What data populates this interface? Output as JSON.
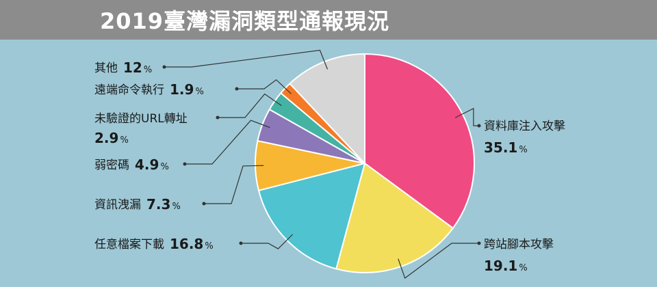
{
  "header": {
    "title": "2019臺灣漏洞類型通報現況"
  },
  "chart_data": {
    "type": "pie",
    "title": "2019臺灣漏洞類型通報現況",
    "unit": "%",
    "slices": [
      {
        "label": "資料庫注入攻擊",
        "value": 35.1,
        "color": "#f04a83"
      },
      {
        "label": "跨站腳本攻擊",
        "value": 19.1,
        "color": "#f2de5a"
      },
      {
        "label": "任意檔案下載",
        "value": 16.8,
        "color": "#4fc3cf"
      },
      {
        "label": "資訊洩漏",
        "value": 7.3,
        "color": "#f7b733"
      },
      {
        "label": "弱密碼",
        "value": 4.9,
        "color": "#8c78b8"
      },
      {
        "label": "未驗證的URL轉址",
        "value": 2.9,
        "color": "#44b3a4"
      },
      {
        "label": "遠端命令執行",
        "value": 1.9,
        "color": "#f47a28"
      },
      {
        "label": "其他",
        "value": 12,
        "color": "#d6d6d6"
      }
    ]
  }
}
